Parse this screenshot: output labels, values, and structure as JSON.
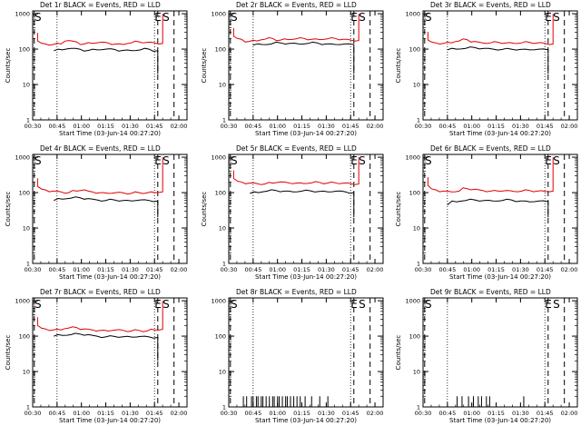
{
  "chart_data": [
    {
      "type": "line",
      "title": "Det 1r BLACK = Events, RED = LLD",
      "xlabel": "Start Time (03-Jun-14 00:27:20)",
      "ylabel": "Counts/sec",
      "yscale": "log",
      "ylim": [
        1,
        1000
      ],
      "ytick_labels": [
        "1",
        "10",
        "100",
        "1000"
      ],
      "xtick_labels": [
        "00:30",
        "00:45",
        "01:00",
        "01:15",
        "01:30",
        "01:45",
        "02:00"
      ],
      "markers": [
        {
          "label": "S",
          "x": "00:30"
        },
        {
          "label": "E",
          "x": "01:45"
        },
        {
          "label": "S",
          "x": "01:50"
        }
      ],
      "dotted_lines": [
        "00:45",
        "01:45"
      ],
      "dashed_lines": [
        "00:31",
        "01:47",
        "01:57"
      ],
      "series": [
        {
          "name": "LLD",
          "color": "#e00000",
          "x_start": "00:33",
          "x_end": "01:50",
          "values": [
            170,
            140,
            135,
            140,
            175,
            160,
            140,
            145,
            155,
            150,
            140,
            135,
            150,
            160,
            155,
            150,
            145
          ]
        },
        {
          "name": "Events",
          "color": "#000000",
          "x_start": "00:43",
          "x_end": "01:47",
          "values": [
            90,
            95,
            105,
            100,
            92,
            95,
            100,
            98,
            92,
            90,
            95,
            100,
            90
          ]
        }
      ]
    },
    {
      "type": "line",
      "title": "Det 2r BLACK = Events, RED = LLD",
      "xlabel": "Start Time (03-Jun-14 00:27:20)",
      "ylabel": "Counts/sec",
      "yscale": "log",
      "ylim": [
        1,
        1000
      ],
      "ytick_labels": [
        "1",
        "10",
        "100",
        "1000"
      ],
      "xtick_labels": [
        "00:30",
        "00:45",
        "01:00",
        "01:15",
        "01:30",
        "01:45",
        "02:00"
      ],
      "markers": [
        {
          "label": "S",
          "x": "00:30"
        },
        {
          "label": "E",
          "x": "01:45"
        },
        {
          "label": "S",
          "x": "01:50"
        }
      ],
      "dotted_lines": [
        "00:45",
        "01:45"
      ],
      "dashed_lines": [
        "00:31",
        "01:47",
        "01:57"
      ],
      "series": [
        {
          "name": "LLD",
          "color": "#e00000",
          "x_start": "00:33",
          "x_end": "01:50",
          "values": [
            230,
            190,
            165,
            170,
            190,
            200,
            180,
            185,
            195,
            200,
            190,
            185,
            195,
            200,
            190,
            180,
            175
          ]
        },
        {
          "name": "Events",
          "color": "#000000",
          "x_start": "00:45",
          "x_end": "01:47",
          "values": [
            130,
            135,
            140,
            150,
            145,
            140,
            145,
            150,
            140,
            135,
            140,
            135
          ]
        }
      ]
    },
    {
      "type": "line",
      "title": "Det 3r BLACK = Events, RED = LLD",
      "xlabel": "Start Time (03-Jun-14 00:27:20)",
      "ylabel": "Counts/sec",
      "yscale": "log",
      "ylim": [
        1,
        1000
      ],
      "ytick_labels": [
        "1",
        "10",
        "100",
        "1000"
      ],
      "xtick_labels": [
        "00:30",
        "00:45",
        "01:00",
        "01:15",
        "01:30",
        "01:45",
        "02:00"
      ],
      "markers": [
        {
          "label": "S",
          "x": "00:30"
        },
        {
          "label": "E",
          "x": "01:45"
        },
        {
          "label": "S",
          "x": "01:50"
        }
      ],
      "dotted_lines": [
        "00:45",
        "01:45"
      ],
      "dashed_lines": [
        "00:31",
        "01:47",
        "01:57"
      ],
      "series": [
        {
          "name": "LLD",
          "color": "#e00000",
          "x_start": "00:33",
          "x_end": "01:50",
          "values": [
            180,
            150,
            145,
            150,
            170,
            185,
            165,
            150,
            150,
            155,
            150,
            145,
            150,
            155,
            150,
            145,
            140
          ]
        },
        {
          "name": "Events",
          "color": "#000000",
          "x_start": "00:45",
          "x_end": "01:47",
          "values": [
            95,
            100,
            105,
            110,
            105,
            100,
            98,
            100,
            98,
            95,
            100,
            96
          ]
        }
      ]
    },
    {
      "type": "line",
      "title": "Det 4r BLACK = Events, RED = LLD",
      "xlabel": "Start Time (03-Jun-14 00:27:20)",
      "ylabel": "Counts/sec",
      "yscale": "log",
      "ylim": [
        1,
        1000
      ],
      "ytick_labels": [
        "1",
        "10",
        "100",
        "1000"
      ],
      "xtick_labels": [
        "00:30",
        "00:45",
        "01:00",
        "01:15",
        "01:30",
        "01:45",
        "02:00"
      ],
      "markers": [
        {
          "label": "S",
          "x": "00:30"
        },
        {
          "label": "E",
          "x": "01:45"
        },
        {
          "label": "S",
          "x": "01:50"
        }
      ],
      "dotted_lines": [
        "00:45",
        "01:45"
      ],
      "dashed_lines": [
        "00:31",
        "01:47",
        "01:57"
      ],
      "series": [
        {
          "name": "LLD",
          "color": "#e00000",
          "x_start": "00:33",
          "x_end": "01:50",
          "values": [
            150,
            120,
            110,
            105,
            100,
            110,
            120,
            105,
            100,
            95,
            100,
            98,
            95,
            100,
            98,
            100,
            105
          ]
        },
        {
          "name": "Events",
          "color": "#000000",
          "x_start": "00:43",
          "x_end": "01:47",
          "values": [
            60,
            65,
            70,
            72,
            68,
            62,
            60,
            62,
            60,
            58,
            62,
            60,
            58
          ]
        }
      ]
    },
    {
      "type": "line",
      "title": "Det 5r BLACK = Events, RED = LLD",
      "xlabel": "Start Time (03-Jun-14 00:27:20)",
      "ylabel": "Counts/sec",
      "yscale": "log",
      "ylim": [
        1,
        1000
      ],
      "ytick_labels": [
        "1",
        "10",
        "100",
        "1000"
      ],
      "xtick_labels": [
        "00:30",
        "00:45",
        "01:00",
        "01:15",
        "01:30",
        "01:45",
        "02:00"
      ],
      "markers": [
        {
          "label": "S",
          "x": "00:30"
        },
        {
          "label": "E",
          "x": "01:45"
        },
        {
          "label": "S",
          "x": "01:50"
        }
      ],
      "dotted_lines": [
        "00:45",
        "01:45"
      ],
      "dashed_lines": [
        "00:31",
        "01:47",
        "01:57"
      ],
      "series": [
        {
          "name": "LLD",
          "color": "#e00000",
          "x_start": "00:33",
          "x_end": "01:50",
          "values": [
            250,
            200,
            185,
            180,
            175,
            185,
            200,
            190,
            185,
            180,
            190,
            195,
            185,
            190,
            185,
            180,
            175
          ]
        },
        {
          "name": "Events",
          "color": "#000000",
          "x_start": "00:43",
          "x_end": "01:47",
          "values": [
            95,
            100,
            110,
            115,
            110,
            105,
            110,
            112,
            108,
            105,
            110,
            106,
            100
          ]
        }
      ]
    },
    {
      "type": "line",
      "title": "Det 6r BLACK = Events, RED = LLD",
      "xlabel": "Start Time (03-Jun-14 00:27:20)",
      "ylabel": "Counts/sec",
      "yscale": "log",
      "ylim": [
        1,
        1000
      ],
      "ytick_labels": [
        "1",
        "10",
        "100",
        "1000"
      ],
      "xtick_labels": [
        "00:30",
        "00:45",
        "01:00",
        "01:15",
        "01:30",
        "01:45",
        "02:00"
      ],
      "markers": [
        {
          "label": "S",
          "x": "00:30"
        },
        {
          "label": "E",
          "x": "01:45"
        },
        {
          "label": "S",
          "x": "01:50"
        }
      ],
      "dotted_lines": [
        "00:45",
        "01:45"
      ],
      "dashed_lines": [
        "00:31",
        "01:47",
        "01:57"
      ],
      "series": [
        {
          "name": "LLD",
          "color": "#e00000",
          "x_start": "00:33",
          "x_end": "01:50",
          "values": [
            160,
            120,
            110,
            105,
            110,
            130,
            125,
            115,
            110,
            110,
            115,
            108,
            110,
            115,
            110,
            108,
            110
          ]
        },
        {
          "name": "Events",
          "color": "#000000",
          "x_start": "00:45",
          "x_end": "01:47",
          "values": [
            45,
            55,
            60,
            62,
            60,
            58,
            60,
            62,
            58,
            55,
            58,
            56
          ]
        }
      ]
    },
    {
      "type": "line",
      "title": "Det 7r BLACK = Events, RED = LLD",
      "xlabel": "Start Time (03-Jun-14 00:27:20)",
      "ylabel": "Counts/sec",
      "yscale": "log",
      "ylim": [
        1,
        1000
      ],
      "ytick_labels": [
        "1",
        "10",
        "100",
        "1000"
      ],
      "xtick_labels": [
        "00:30",
        "00:45",
        "01:00",
        "01:15",
        "01:30",
        "01:45",
        "02:00"
      ],
      "markers": [
        {
          "label": "S",
          "x": "00:30"
        },
        {
          "label": "E",
          "x": "01:45"
        },
        {
          "label": "S",
          "x": "01:50"
        }
      ],
      "dotted_lines": [
        "00:45",
        "01:45"
      ],
      "dashed_lines": [
        "00:31",
        "01:47",
        "01:57"
      ],
      "series": [
        {
          "name": "LLD",
          "color": "#e00000",
          "x_start": "00:33",
          "x_end": "01:50",
          "values": [
            200,
            160,
            150,
            150,
            170,
            175,
            160,
            150,
            145,
            140,
            150,
            145,
            140,
            145,
            140,
            150,
            155
          ]
        },
        {
          "name": "Events",
          "color": "#000000",
          "x_start": "00:43",
          "x_end": "01:47",
          "values": [
            100,
            105,
            110,
            115,
            110,
            100,
            95,
            98,
            96,
            94,
            98,
            95,
            92
          ]
        }
      ]
    },
    {
      "type": "bar",
      "title": "Det 8r BLACK = Events, RED = LLD",
      "xlabel": "Start Time (03-Jun-14 00:27:20)",
      "ylabel": "",
      "yscale": "log",
      "ylim": [
        1,
        1000
      ],
      "ytick_labels": [
        "1",
        "10",
        "100",
        "1000"
      ],
      "xtick_labels": [
        "00:30",
        "00:45",
        "01:00",
        "01:15",
        "01:30",
        "01:45",
        "02:00"
      ],
      "markers": [
        {
          "label": "S",
          "x": "00:30"
        },
        {
          "label": "E",
          "x": "01:45"
        },
        {
          "label": "S",
          "x": "01:50"
        }
      ],
      "dotted_lines": [
        "00:45",
        "01:45"
      ],
      "dashed_lines": [
        "00:31",
        "01:47",
        "01:57"
      ],
      "series": [
        {
          "name": "Events",
          "color": "#000000",
          "value": 2,
          "x": [
            "00:39",
            "00:41",
            "00:44",
            "00:45",
            "00:47",
            "00:48",
            "00:50",
            "00:51",
            "00:53",
            "00:55",
            "00:57",
            "00:58",
            "01:00",
            "01:01",
            "01:03",
            "01:05",
            "01:06",
            "01:08",
            "01:10",
            "01:12",
            "01:14",
            "01:17",
            "01:21",
            "01:26",
            "01:31"
          ]
        }
      ]
    },
    {
      "type": "bar",
      "title": "Det 9r BLACK = Events, RED = LLD",
      "xlabel": "Start Time (03-Jun-14 00:27:20)",
      "ylabel": "Counts/sec",
      "yscale": "log",
      "ylim": [
        1,
        1000
      ],
      "ytick_labels": [
        "1",
        "10",
        "100",
        "1000"
      ],
      "xtick_labels": [
        "00:30",
        "00:45",
        "01:00",
        "01:15",
        "01:30",
        "01:45",
        "02:00"
      ],
      "markers": [
        {
          "label": "S",
          "x": "00:30"
        },
        {
          "label": "E",
          "x": "01:45"
        },
        {
          "label": "S",
          "x": "01:50"
        }
      ],
      "dotted_lines": [
        "00:45",
        "01:45"
      ],
      "dashed_lines": [
        "00:31",
        "01:47",
        "01:57"
      ],
      "series": [
        {
          "name": "Events",
          "color": "#000000",
          "value": 2,
          "x": [
            "00:51",
            "00:54",
            "00:58",
            "01:01",
            "01:04",
            "01:06",
            "01:09",
            "01:11",
            "01:32"
          ]
        }
      ]
    }
  ]
}
